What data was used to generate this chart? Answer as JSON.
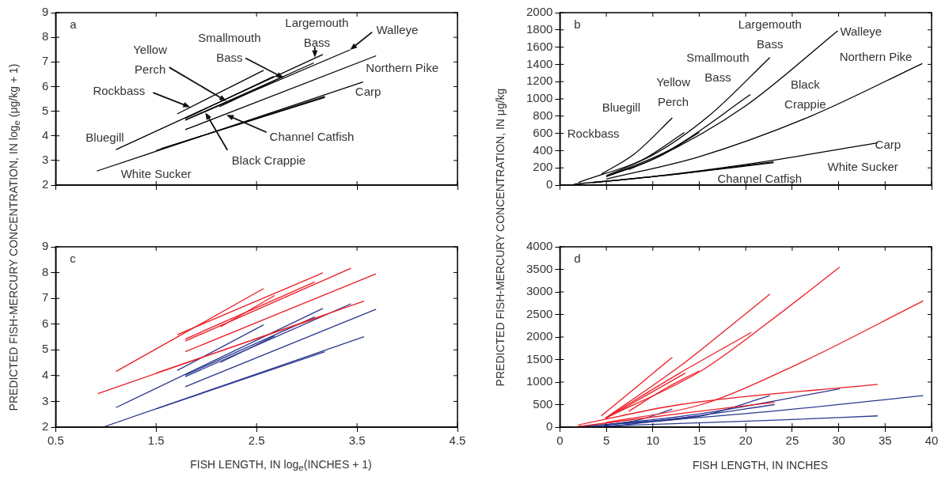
{
  "chart_data": [
    {
      "type": "line",
      "xlim": [
        0.5,
        4.5
      ],
      "xticks": [
        0.5,
        1.5,
        2.5,
        3.5,
        4.5
      ],
      "ylim": [
        2,
        9
      ],
      "yticks": [
        2,
        3,
        4,
        5,
        6,
        7,
        8,
        9
      ],
      "tick_labels": "y",
      "annotations": [
        "a",
        {
          "text": "Largemouth\nBass",
          "x": 3.08,
          "y": 7.18
        },
        {
          "text": "Walleye",
          "x": 3.43,
          "y": 7.49
        },
        {
          "text": "Smallmouth\nBass",
          "x": 2.77,
          "y": 6.35
        },
        {
          "text": "Yellow\nPerch",
          "x": 2.2,
          "y": 5.41
        },
        "Northern Pike",
        {
          "text": "Rockbass",
          "x": 1.84,
          "y": 5.16
        },
        "Carp",
        "Bluegill",
        {
          "text": "Channel Catfish",
          "x": 2.2,
          "y": 4.85
        },
        {
          "text": "Black Crappie",
          "x": 1.99,
          "y": 4.95
        },
        "White Sucker"
      ],
      "series": [
        {
          "color": "#000000",
          "x": [
            1.1,
            3.16
          ],
          "values": [
            3.44,
            7.3
          ]
        },
        {
          "color": "#000000",
          "x": [
            1.71,
            2.57
          ],
          "values": [
            4.89,
            6.66
          ]
        },
        {
          "color": "#000000",
          "x": [
            1.79,
            3.07
          ],
          "values": [
            4.64,
            6.96
          ]
        },
        {
          "color": "#000000",
          "x": [
            1.79,
            2.67
          ],
          "values": [
            4.71,
            6.41
          ]
        },
        {
          "color": "#000000",
          "x": [
            2.13,
            2.77
          ],
          "values": [
            5.18,
            6.42
          ]
        },
        {
          "color": "#000000",
          "x": [
            1.79,
            3.43
          ],
          "values": [
            4.64,
            7.49
          ]
        },
        {
          "color": "#000000",
          "x": [
            1.79,
            3.69
          ],
          "values": [
            4.25,
            7.25
          ]
        },
        {
          "color": "#000000",
          "x": [
            0.91,
            3.56
          ],
          "values": [
            2.57,
            6.19
          ]
        },
        {
          "color": "#000000",
          "x": [
            1.5,
            3.18
          ],
          "values": [
            3.4,
            5.6
          ]
        },
        {
          "color": "#000000",
          "x": [
            1.55,
            3.18
          ],
          "values": [
            3.48,
            5.56
          ]
        }
      ]
    },
    {
      "type": "line",
      "xlim": [
        0,
        40
      ],
      "xticks": [
        0,
        5,
        10,
        15,
        20,
        25,
        30,
        35,
        40
      ],
      "ylim": [
        0,
        2000
      ],
      "yticks": [
        0,
        200,
        400,
        600,
        800,
        1000,
        1200,
        1400,
        1600,
        1800,
        2000
      ],
      "tick_labels": "y",
      "annotations": [
        "b",
        "Largemouth\nBass",
        "Walleye",
        "Smallmouth\nBass",
        "Northern Pike",
        "Yellow\nPerch",
        "Black\nCrappie",
        "Bluegill",
        "Rockbass",
        "Carp",
        "White Sucker",
        "Channel Catfish"
      ],
      "series": [
        {
          "color": "#000000",
          "x": [
            2,
            10,
            16,
            22.6
          ],
          "values": [
            30,
            350,
            800,
            1480
          ]
        },
        {
          "color": "#000000",
          "x": [
            4.5,
            8,
            12.1
          ],
          "values": [
            130,
            360,
            780
          ]
        },
        {
          "color": "#000000",
          "x": [
            5,
            12,
            20.5
          ],
          "values": [
            100,
            420,
            1050
          ]
        },
        {
          "color": "#000000",
          "x": [
            5,
            9,
            13.4
          ],
          "values": [
            110,
            300,
            610
          ]
        },
        {
          "color": "#000000",
          "x": [
            7.4,
            11,
            15
          ],
          "values": [
            180,
            350,
            610
          ]
        },
        {
          "color": "#000000",
          "x": [
            5,
            10,
            20,
            29.9
          ],
          "values": [
            100,
            300,
            920,
            1790
          ]
        },
        {
          "color": "#000000",
          "x": [
            5,
            15,
            27,
            39
          ],
          "values": [
            70,
            330,
            800,
            1410
          ]
        },
        {
          "color": "#000000",
          "x": [
            1.5,
            10,
            20,
            34.2
          ],
          "values": [
            10,
            100,
            240,
            490
          ]
        },
        {
          "color": "#000000",
          "x": [
            3.5,
            12,
            23
          ],
          "values": [
            30,
            120,
            270
          ]
        },
        {
          "color": "#000000",
          "x": [
            3.7,
            12,
            23
          ],
          "values": [
            30,
            120,
            260
          ]
        }
      ]
    },
    {
      "type": "line",
      "xlim": [
        0.5,
        4.5
      ],
      "xticks": [
        0.5,
        1.5,
        2.5,
        3.5,
        4.5
      ],
      "ylim": [
        2,
        9
      ],
      "yticks": [
        2,
        3,
        4,
        5,
        6,
        7,
        8,
        9
      ],
      "xlabel": "FISH LENGTH, IN log$_{e}$(INCHES + 1)",
      "ylabel": "PREDICTED FISH-MERCURY CONCENTRATION, IN log$_{e}$ (μg/kg + 1)",
      "annotations": [
        "c"
      ],
      "series": [
        {
          "color": "#ed1c24",
          "x": [
            1.1,
            2.57
          ],
          "values": [
            4.16,
            7.38
          ]
        },
        {
          "color": "#ed1c24",
          "x": [
            0.92,
            3.57
          ],
          "values": [
            3.3,
            6.89
          ]
        },
        {
          "color": "#ed1c24",
          "x": [
            1.71,
            3.16
          ],
          "values": [
            5.59,
            7.99
          ]
        },
        {
          "color": "#ed1c24",
          "x": [
            1.79,
            3.44
          ],
          "values": [
            5.34,
            8.17
          ]
        },
        {
          "color": "#ed1c24",
          "x": [
            1.79,
            3.08
          ],
          "values": [
            5.42,
            7.64
          ]
        },
        {
          "color": "#ed1c24",
          "x": [
            2.14,
            2.68
          ],
          "values": [
            5.89,
            7.11
          ]
        },
        {
          "color": "#ed1c24",
          "x": [
            1.79,
            3.69
          ],
          "values": [
            4.93,
            7.95
          ]
        },
        {
          "color": "#ed1c24",
          "x": [
            1.5,
            3.18
          ],
          "values": [
            4.1,
            6.34
          ]
        },
        {
          "color": "#2b3990",
          "x": [
            1.1,
            3.16
          ],
          "values": [
            2.76,
            6.61
          ]
        },
        {
          "color": "#2b3990",
          "x": [
            1.71,
            2.57
          ],
          "values": [
            4.2,
            5.97
          ]
        },
        {
          "color": "#2b3990",
          "x": [
            1.79,
            3.44
          ],
          "values": [
            3.96,
            6.79
          ]
        },
        {
          "color": "#2b3990",
          "x": [
            1.79,
            3.08
          ],
          "values": [
            4.02,
            6.28
          ]
        },
        {
          "color": "#2b3990",
          "x": [
            2.14,
            2.68
          ],
          "values": [
            4.51,
            5.54
          ]
        },
        {
          "color": "#2b3990",
          "x": [
            1.79,
            3.69
          ],
          "values": [
            3.57,
            6.58
          ]
        },
        {
          "color": "#2b3990",
          "x": [
            0.97,
            3.57
          ],
          "values": [
            2,
            5.51
          ]
        },
        {
          "color": "#2b3990",
          "x": [
            1.5,
            3.18
          ],
          "values": [
            2.71,
            4.93
          ]
        }
      ]
    },
    {
      "type": "line",
      "xlim": [
        0,
        40
      ],
      "xticks": [
        0,
        5,
        10,
        15,
        20,
        25,
        30,
        35,
        40
      ],
      "ylim": [
        0,
        4000
      ],
      "yticks": [
        0,
        500,
        1000,
        1500,
        2000,
        2500,
        3000,
        3500,
        4000
      ],
      "xlabel": "FISH LENGTH, IN INCHES",
      "ylabel": "PREDICTED FISH-MERCURY CONCENTRATION, IN μg/kg",
      "annotations": [
        "d"
      ],
      "series": [
        {
          "color": "#ed1c24",
          "x": [
            4.45,
            8.3,
            12.1
          ],
          "values": [
            250,
            900,
            1550
          ]
        },
        {
          "color": "#ed1c24",
          "x": [
            4.9,
            12.9,
            17.8,
            22.6
          ],
          "values": [
            200,
            1350,
            2150,
            2950
          ]
        },
        {
          "color": "#ed1c24",
          "x": [
            4.9,
            12.9,
            20.6
          ],
          "values": [
            200,
            1200,
            2100
          ]
        },
        {
          "color": "#ed1c24",
          "x": [
            4.9,
            15.2,
            22.6,
            30.1
          ],
          "values": [
            200,
            1250,
            2350,
            3550
          ]
        },
        {
          "color": "#ed1c24",
          "x": [
            7.4,
            11.3,
            15
          ],
          "values": [
            350,
            850,
            1250
          ]
        },
        {
          "color": "#ed1c24",
          "x": [
            5,
            13.5
          ],
          "values": [
            200,
            1200
          ]
        },
        {
          "color": "#ed1c24",
          "x": [
            4.9,
            15.2,
            25.1,
            39.1
          ],
          "values": [
            100,
            500,
            1350,
            2800
          ]
        },
        {
          "color": "#ed1c24",
          "x": [
            2,
            12.9,
            34.2
          ],
          "values": [
            50,
            500,
            950
          ]
        },
        {
          "color": "#ed1c24",
          "x": [
            1.5,
            12.9,
            23.1
          ],
          "values": [
            0,
            300,
            550
          ]
        },
        {
          "color": "#2b3990",
          "x": [
            4.9,
            15.2,
            30.1
          ],
          "values": [
            50,
            300,
            850
          ]
        },
        {
          "color": "#2b3990",
          "x": [
            4.9,
            15.2,
            22.6
          ],
          "values": [
            50,
            250,
            700
          ]
        },
        {
          "color": "#2b3990",
          "x": [
            4.9,
            8.3,
            12.1
          ],
          "values": [
            50,
            150,
            400
          ]
        },
        {
          "color": "#2b3990",
          "x": [
            1.5,
            22.6,
            39.1
          ],
          "values": [
            0,
            350,
            700
          ]
        },
        {
          "color": "#2b3990",
          "x": [
            1.5,
            22.6,
            34.2
          ],
          "values": [
            0,
            150,
            250
          ]
        },
        {
          "color": "#2b3990",
          "x": [
            1.5,
            12.9,
            23.1
          ],
          "values": [
            0,
            200,
            500
          ]
        },
        {
          "color": "#2b3990",
          "x": [
            4.9,
            15
          ],
          "values": [
            0,
            250
          ]
        }
      ]
    }
  ]
}
